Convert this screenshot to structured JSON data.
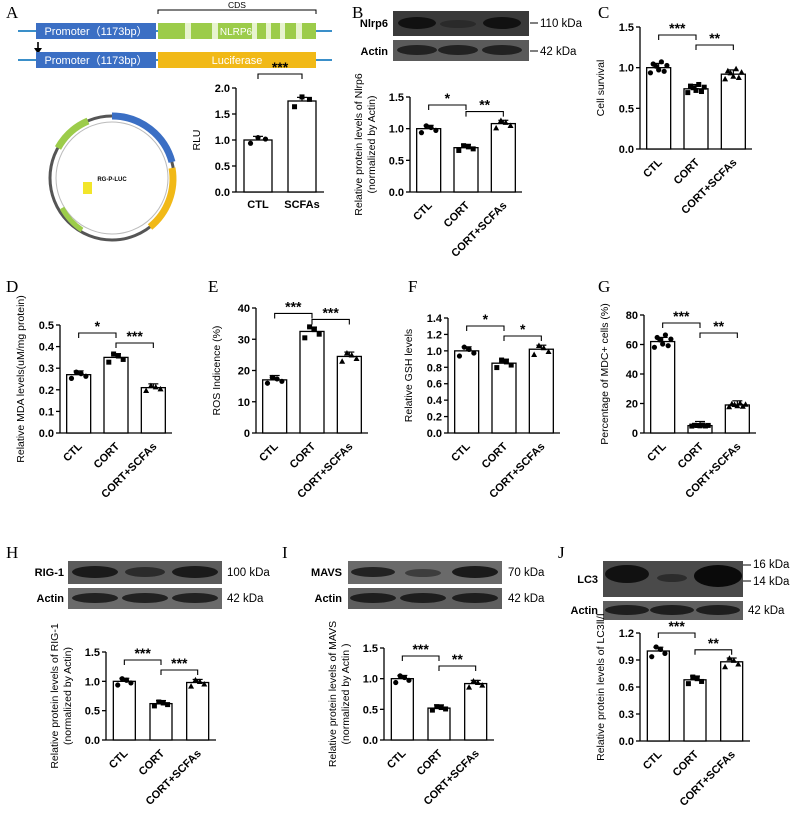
{
  "panels": {
    "A": {
      "letter": "A",
      "construct": {
        "cds_label": "CDS",
        "promoter_label": "Promoter（1173bp）",
        "nlrp6_label": "NLRP6",
        "luciferase_label": "Luciferase"
      },
      "plasmid": {
        "name": "RG-P-LUC"
      }
    },
    "B": {
      "letter": "B",
      "blot_rows": [
        {
          "label": "Nlrp6",
          "kda": "110 kDa"
        },
        {
          "label": "Actin",
          "kda": "42 kDa"
        }
      ]
    },
    "C": {
      "letter": "C"
    },
    "D": {
      "letter": "D"
    },
    "E": {
      "letter": "E"
    },
    "F": {
      "letter": "F"
    },
    "G": {
      "letter": "G"
    },
    "H": {
      "letter": "H",
      "blot_rows": [
        {
          "label": "RIG-1",
          "kda": "100 kDa"
        },
        {
          "label": "Actin",
          "kda": "42 kDa"
        }
      ]
    },
    "I": {
      "letter": "I",
      "blot_rows": [
        {
          "label": "MAVS",
          "kda": "70 kDa"
        },
        {
          "label": "Actin",
          "kda": "42 kDa"
        }
      ]
    },
    "J": {
      "letter": "J",
      "blot_rows": [
        {
          "label": "LC3",
          "kda": "16 kDa"
        },
        {
          "label": "",
          "kda": "14 kDa"
        },
        {
          "label": "Actin",
          "kda": "42 kDa"
        }
      ]
    }
  },
  "chart_data": [
    {
      "id": "A",
      "type": "bar",
      "categories": [
        "CTL",
        "SCFAs"
      ],
      "values": [
        1.0,
        1.75
      ],
      "ylabel": "RLU",
      "ylim": [
        0,
        2.0
      ],
      "yticks": [
        "0.0",
        "0.5",
        "1.0",
        "1.5",
        "2.0"
      ],
      "significance": [
        {
          "from": 0,
          "to": 1,
          "label": "***"
        }
      ]
    },
    {
      "id": "B",
      "type": "bar",
      "categories": [
        "CTL",
        "CORT",
        "CORT+SCFAs"
      ],
      "values": [
        1.0,
        0.7,
        1.08
      ],
      "ylabel": "Relative protein levels of Nlrp6\n(normalized  by Actin)",
      "ylim": [
        0,
        1.5
      ],
      "yticks": [
        "0.0",
        "0.5",
        "1.0",
        "1.5"
      ],
      "significance": [
        {
          "from": 0,
          "to": 1,
          "label": "*"
        },
        {
          "from": 1,
          "to": 2,
          "label": "**"
        }
      ]
    },
    {
      "id": "C",
      "type": "bar",
      "categories": [
        "CTL",
        "CORT",
        "CORT+SCFAs"
      ],
      "values": [
        1.0,
        0.74,
        0.92
      ],
      "ylabel": "Cell survival",
      "ylim": [
        0,
        1.5
      ],
      "yticks": [
        "0.0",
        "0.5",
        "1.0",
        "1.5"
      ],
      "significance": [
        {
          "from": 0,
          "to": 1,
          "label": "***"
        },
        {
          "from": 1,
          "to": 2,
          "label": "**"
        }
      ]
    },
    {
      "id": "D",
      "type": "bar",
      "categories": [
        "CTL",
        "CORT",
        "CORT+SCFAs"
      ],
      "values": [
        0.27,
        0.35,
        0.21
      ],
      "ylabel": "Relative MDA levels(uM/mg protein)",
      "ylim": [
        0,
        0.5
      ],
      "yticks": [
        "0.0",
        "0.1",
        "0.2",
        "0.3",
        "0.4",
        "0.5"
      ],
      "significance": [
        {
          "from": 0,
          "to": 1,
          "label": "*"
        },
        {
          "from": 1,
          "to": 2,
          "label": "***"
        }
      ]
    },
    {
      "id": "E",
      "type": "bar",
      "categories": [
        "CTL",
        "CORT",
        "CORT+SCFAs"
      ],
      "values": [
        17,
        32.5,
        24.5
      ],
      "ylabel": "ROS Indicence (%)",
      "ylim": [
        0,
        40
      ],
      "yticks": [
        "0",
        "10",
        "20",
        "30",
        "40"
      ],
      "significance": [
        {
          "from": 0,
          "to": 1,
          "label": "***"
        },
        {
          "from": 1,
          "to": 2,
          "label": "***"
        }
      ]
    },
    {
      "id": "F",
      "type": "bar",
      "categories": [
        "CTL",
        "CORT",
        "CORT+SCFAs"
      ],
      "values": [
        1.0,
        0.85,
        1.02
      ],
      "ylabel": "Relative GSH levels",
      "ylim": [
        0,
        1.4
      ],
      "yticks": [
        "0.0",
        "0.2",
        "0.4",
        "0.6",
        "0.8",
        "1.0",
        "1.2",
        "1.4"
      ],
      "significance": [
        {
          "from": 0,
          "to": 1,
          "label": "*"
        },
        {
          "from": 1,
          "to": 2,
          "label": "*"
        }
      ]
    },
    {
      "id": "G",
      "type": "bar",
      "categories": [
        "CTL",
        "CORT",
        "CORT+SCFAs"
      ],
      "values": [
        62,
        5,
        19
      ],
      "ylabel": "Percentage of MDC+ cells (%)",
      "ylim": [
        0,
        80
      ],
      "yticks": [
        "0",
        "20",
        "40",
        "60",
        "80"
      ],
      "significance": [
        {
          "from": 0,
          "to": 1,
          "label": "***"
        },
        {
          "from": 1,
          "to": 2,
          "label": "**"
        }
      ]
    },
    {
      "id": "H",
      "type": "bar",
      "categories": [
        "CTL",
        "CORT",
        "CORT+SCFAs"
      ],
      "values": [
        1.0,
        0.62,
        0.98
      ],
      "ylabel": "Relative protein levels of RIG-1\n(normalized  by Actin)",
      "ylim": [
        0,
        1.5
      ],
      "yticks": [
        "0.0",
        "0.5",
        "1.0",
        "1.5"
      ],
      "significance": [
        {
          "from": 0,
          "to": 1,
          "label": "***"
        },
        {
          "from": 1,
          "to": 2,
          "label": "***"
        }
      ]
    },
    {
      "id": "I",
      "type": "bar",
      "categories": [
        "CTL",
        "CORT",
        "CORT+SCFAs"
      ],
      "values": [
        1.0,
        0.52,
        0.92
      ],
      "ylabel": "Relative protein levels of MAVS\n(normalized  by Actin )",
      "ylim": [
        0,
        1.5
      ],
      "yticks": [
        "0.0",
        "0.5",
        "1.0",
        "1.5"
      ],
      "significance": [
        {
          "from": 0,
          "to": 1,
          "label": "***"
        },
        {
          "from": 1,
          "to": 2,
          "label": "**"
        }
      ]
    },
    {
      "id": "J",
      "type": "bar",
      "categories": [
        "CTL",
        "CORT",
        "CORT+SCFAs"
      ],
      "values": [
        1.0,
        0.68,
        0.88
      ],
      "ylabel": "Relative protein levels of  LC3Ⅱ/Ⅰ",
      "ylim": [
        0,
        1.2
      ],
      "yticks": [
        "0.0",
        "0.3",
        "0.6",
        "0.9",
        "1.2"
      ],
      "significance": [
        {
          "from": 0,
          "to": 1,
          "label": "***"
        },
        {
          "from": 1,
          "to": 2,
          "label": "**"
        }
      ]
    }
  ]
}
